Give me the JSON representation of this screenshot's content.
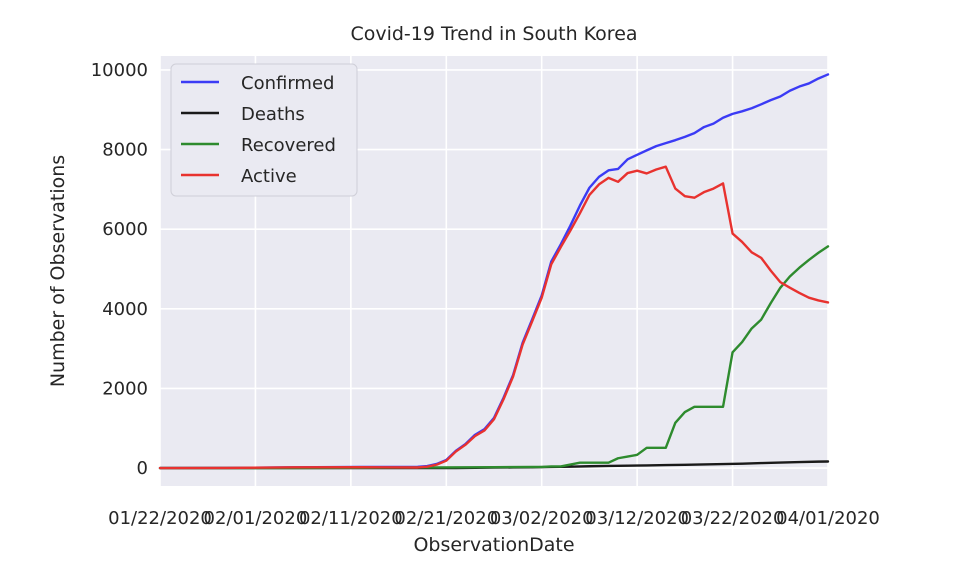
{
  "chart_data": {
    "type": "line",
    "title": "Covid-19 Trend in South Korea",
    "xlabel": "ObservationDate",
    "ylabel": "Number of Observations",
    "x_start": "01/22/2020",
    "x_end": "04/01/2020",
    "xlim": [
      "01/22/2020",
      "04/01/2020"
    ],
    "ylim": [
      -450,
      10350
    ],
    "x_ticks": [
      "01/22/2020",
      "02/01/2020",
      "02/11/2020",
      "02/21/2020",
      "03/02/2020",
      "03/12/2020",
      "03/22/2020",
      "04/01/2020"
    ],
    "y_ticks": [
      0,
      2000,
      4000,
      6000,
      8000,
      10000
    ],
    "grid": true,
    "legend_position": "top-left",
    "colors": {
      "background": "#eaeaf2",
      "grid": "#ffffff"
    },
    "series": [
      {
        "name": "Confirmed",
        "color": "#3b3bf5",
        "points": [
          [
            "01/22/2020",
            1
          ],
          [
            "01/29/2020",
            4
          ],
          [
            "02/05/2020",
            19
          ],
          [
            "02/12/2020",
            28
          ],
          [
            "02/18/2020",
            31
          ],
          [
            "02/19/2020",
            51
          ],
          [
            "02/20/2020",
            104
          ],
          [
            "02/21/2020",
            204
          ],
          [
            "02/22/2020",
            433
          ],
          [
            "02/23/2020",
            602
          ],
          [
            "02/24/2020",
            833
          ],
          [
            "02/25/2020",
            977
          ],
          [
            "02/26/2020",
            1261
          ],
          [
            "02/27/2020",
            1766
          ],
          [
            "02/28/2020",
            2337
          ],
          [
            "02/29/2020",
            3150
          ],
          [
            "03/01/2020",
            3736
          ],
          [
            "03/02/2020",
            4335
          ],
          [
            "03/03/2020",
            5186
          ],
          [
            "03/04/2020",
            5621
          ],
          [
            "03/05/2020",
            6088
          ],
          [
            "03/06/2020",
            6593
          ],
          [
            "03/07/2020",
            7041
          ],
          [
            "03/08/2020",
            7314
          ],
          [
            "03/09/2020",
            7478
          ],
          [
            "03/10/2020",
            7513
          ],
          [
            "03/11/2020",
            7755
          ],
          [
            "03/12/2020",
            7869
          ],
          [
            "03/13/2020",
            7979
          ],
          [
            "03/14/2020",
            8086
          ],
          [
            "03/15/2020",
            8162
          ],
          [
            "03/16/2020",
            8236
          ],
          [
            "03/17/2020",
            8320
          ],
          [
            "03/18/2020",
            8413
          ],
          [
            "03/19/2020",
            8565
          ],
          [
            "03/20/2020",
            8652
          ],
          [
            "03/21/2020",
            8799
          ],
          [
            "03/22/2020",
            8897
          ],
          [
            "03/23/2020",
            8961
          ],
          [
            "03/24/2020",
            9037
          ],
          [
            "03/25/2020",
            9137
          ],
          [
            "03/26/2020",
            9241
          ],
          [
            "03/27/2020",
            9332
          ],
          [
            "03/28/2020",
            9478
          ],
          [
            "03/29/2020",
            9583
          ],
          [
            "03/30/2020",
            9661
          ],
          [
            "03/31/2020",
            9786
          ],
          [
            "04/01/2020",
            9887
          ]
        ]
      },
      {
        "name": "Deaths",
        "color": "#1a1a1a",
        "points": [
          [
            "01/22/2020",
            0
          ],
          [
            "02/19/2020",
            0
          ],
          [
            "02/20/2020",
            1
          ],
          [
            "02/22/2020",
            2
          ],
          [
            "02/24/2020",
            8
          ],
          [
            "02/26/2020",
            12
          ],
          [
            "02/28/2020",
            16
          ],
          [
            "03/01/2020",
            20
          ],
          [
            "03/03/2020",
            28
          ],
          [
            "03/05/2020",
            35
          ],
          [
            "03/07/2020",
            46
          ],
          [
            "03/09/2020",
            53
          ],
          [
            "03/11/2020",
            60
          ],
          [
            "03/13/2020",
            67
          ],
          [
            "03/15/2020",
            75
          ],
          [
            "03/17/2020",
            81
          ],
          [
            "03/19/2020",
            91
          ],
          [
            "03/21/2020",
            102
          ],
          [
            "03/23/2020",
            111
          ],
          [
            "03/25/2020",
            126
          ],
          [
            "03/27/2020",
            139
          ],
          [
            "03/29/2020",
            152
          ],
          [
            "03/31/2020",
            162
          ],
          [
            "04/01/2020",
            165
          ]
        ]
      },
      {
        "name": "Recovered",
        "color": "#2e8b2e",
        "points": [
          [
            "01/22/2020",
            0
          ],
          [
            "02/05/2020",
            0
          ],
          [
            "02/20/2020",
            16
          ],
          [
            "02/26/2020",
            22
          ],
          [
            "03/01/2020",
            30
          ],
          [
            "03/02/2020",
            30
          ],
          [
            "03/03/2020",
            41
          ],
          [
            "03/04/2020",
            41
          ],
          [
            "03/05/2020",
            88
          ],
          [
            "03/06/2020",
            135
          ],
          [
            "03/07/2020",
            135
          ],
          [
            "03/08/2020",
            135
          ],
          [
            "03/09/2020",
            135
          ],
          [
            "03/10/2020",
            247
          ],
          [
            "03/11/2020",
            288
          ],
          [
            "03/12/2020",
            333
          ],
          [
            "03/13/2020",
            510
          ],
          [
            "03/14/2020",
            510
          ],
          [
            "03/15/2020",
            510
          ],
          [
            "03/16/2020",
            1137
          ],
          [
            "03/17/2020",
            1407
          ],
          [
            "03/18/2020",
            1540
          ],
          [
            "03/19/2020",
            1540
          ],
          [
            "03/20/2020",
            1540
          ],
          [
            "03/21/2020",
            1540
          ],
          [
            "03/22/2020",
            2909
          ],
          [
            "03/23/2020",
            3166
          ],
          [
            "03/24/2020",
            3507
          ],
          [
            "03/25/2020",
            3730
          ],
          [
            "03/26/2020",
            4144
          ],
          [
            "03/27/2020",
            4528
          ],
          [
            "03/28/2020",
            4811
          ],
          [
            "03/29/2020",
            5033
          ],
          [
            "03/30/2020",
            5228
          ],
          [
            "03/31/2020",
            5408
          ],
          [
            "04/01/2020",
            5567
          ]
        ]
      },
      {
        "name": "Active",
        "color": "#e8322f",
        "points": [
          [
            "01/22/2020",
            1
          ],
          [
            "01/29/2020",
            4
          ],
          [
            "02/05/2020",
            19
          ],
          [
            "02/12/2020",
            21
          ],
          [
            "02/18/2020",
            15
          ],
          [
            "02/19/2020",
            35
          ],
          [
            "02/20/2020",
            87
          ],
          [
            "02/21/2020",
            186
          ],
          [
            "02/22/2020",
            415
          ],
          [
            "02/23/2020",
            584
          ],
          [
            "02/24/2020",
            803
          ],
          [
            "02/25/2020",
            945
          ],
          [
            "02/26/2020",
            1227
          ],
          [
            "02/27/2020",
            1729
          ],
          [
            "02/28/2020",
            2299
          ],
          [
            "02/29/2020",
            3103
          ],
          [
            "03/01/2020",
            3686
          ],
          [
            "03/02/2020",
            4280
          ],
          [
            "03/03/2020",
            5117
          ],
          [
            "03/04/2020",
            5552
          ],
          [
            "03/05/2020",
            5964
          ],
          [
            "03/06/2020",
            6400
          ],
          [
            "03/07/2020",
            6860
          ],
          [
            "03/08/2020",
            7125
          ],
          [
            "03/09/2020",
            7290
          ],
          [
            "03/10/2020",
            7190
          ],
          [
            "03/11/2020",
            7410
          ],
          [
            "03/12/2020",
            7470
          ],
          [
            "03/13/2020",
            7400
          ],
          [
            "03/14/2020",
            7500
          ],
          [
            "03/15/2020",
            7570
          ],
          [
            "03/16/2020",
            7020
          ],
          [
            "03/17/2020",
            6830
          ],
          [
            "03/18/2020",
            6790
          ],
          [
            "03/19/2020",
            6930
          ],
          [
            "03/20/2020",
            7020
          ],
          [
            "03/21/2020",
            7150
          ],
          [
            "03/22/2020",
            5890
          ],
          [
            "03/23/2020",
            5680
          ],
          [
            "03/24/2020",
            5420
          ],
          [
            "03/25/2020",
            5280
          ],
          [
            "03/26/2020",
            4960
          ],
          [
            "03/27/2020",
            4670
          ],
          [
            "03/28/2020",
            4530
          ],
          [
            "03/29/2020",
            4400
          ],
          [
            "03/30/2020",
            4280
          ],
          [
            "03/31/2020",
            4210
          ],
          [
            "04/01/2020",
            4160
          ]
        ]
      }
    ]
  }
}
